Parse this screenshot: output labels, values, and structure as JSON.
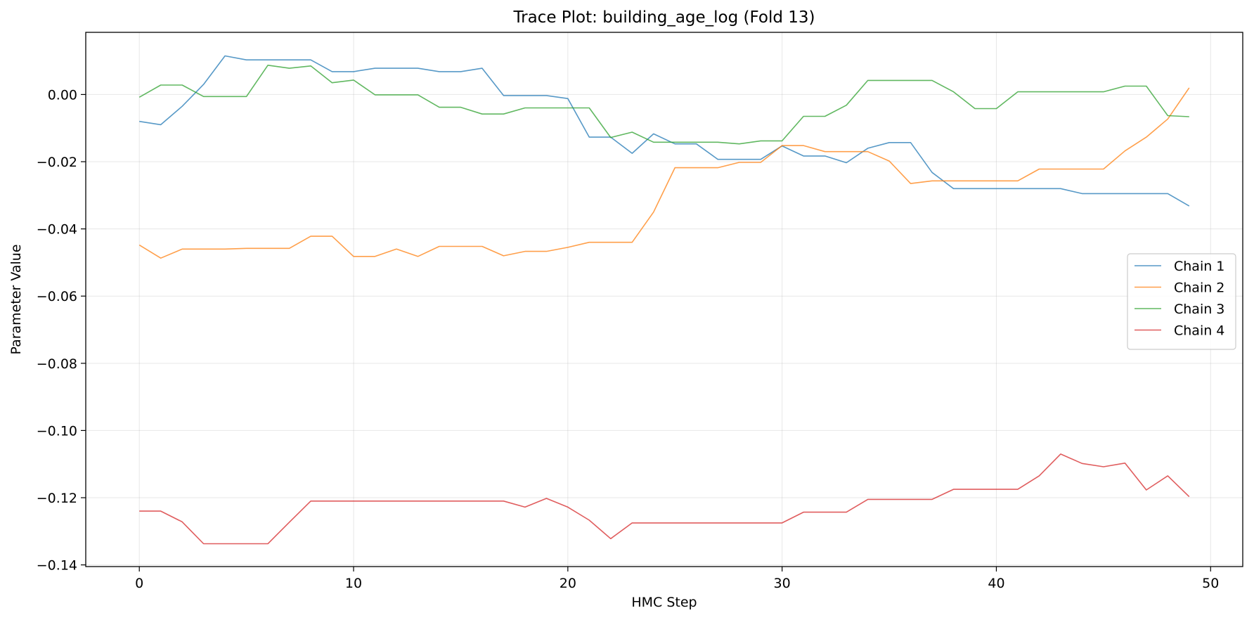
{
  "chart_data": {
    "type": "line",
    "title": "Trace Plot: building_age_log (Fold 13)",
    "xlabel": "HMC Step",
    "ylabel": "Parameter Value",
    "xlim": [
      -2.5,
      51.5
    ],
    "ylim": [
      -0.1405,
      0.0185
    ],
    "xticks": [
      0,
      10,
      20,
      30,
      40,
      50
    ],
    "xtick_labels": [
      "0",
      "10",
      "20",
      "30",
      "40",
      "50"
    ],
    "yticks": [
      0.0,
      -0.02,
      -0.04,
      -0.06,
      -0.08,
      -0.1,
      -0.12,
      -0.14
    ],
    "ytick_labels": [
      "0.00",
      "−0.02",
      "−0.04",
      "−0.06",
      "−0.08",
      "−0.10",
      "−0.12",
      "−0.14"
    ],
    "grid": true,
    "legend_position": "center-right",
    "x": [
      0,
      1,
      2,
      3,
      4,
      5,
      6,
      7,
      8,
      9,
      10,
      11,
      12,
      13,
      14,
      15,
      16,
      17,
      18,
      19,
      20,
      21,
      22,
      23,
      24,
      25,
      26,
      27,
      28,
      29,
      30,
      31,
      32,
      33,
      34,
      35,
      36,
      37,
      38,
      39,
      40,
      41,
      42,
      43,
      44,
      45,
      46,
      47,
      48,
      49
    ],
    "series": [
      {
        "name": "Chain 1",
        "color": "#1f77b4",
        "values": [
          -0.008,
          -0.009,
          -0.0035,
          0.003,
          0.0115,
          0.0103,
          0.0103,
          0.0103,
          0.0103,
          0.0068,
          0.0068,
          0.0078,
          0.0078,
          0.0078,
          0.0068,
          0.0068,
          0.0078,
          -0.0003,
          -0.0003,
          -0.0003,
          -0.0012,
          -0.0127,
          -0.0127,
          -0.0175,
          -0.0117,
          -0.0147,
          -0.0147,
          -0.0193,
          -0.0193,
          -0.0193,
          -0.0153,
          -0.0183,
          -0.0183,
          -0.0203,
          -0.016,
          -0.0143,
          -0.0143,
          -0.0232,
          -0.028,
          -0.028,
          -0.028,
          -0.028,
          -0.028,
          -0.028,
          -0.0295,
          -0.0295,
          -0.0295,
          -0.0295,
          -0.0295,
          -0.0332
        ]
      },
      {
        "name": "Chain 2",
        "color": "#ff7f0e",
        "values": [
          -0.0448,
          -0.0487,
          -0.046,
          -0.046,
          -0.046,
          -0.0458,
          -0.0458,
          -0.0458,
          -0.0422,
          -0.0422,
          -0.0482,
          -0.0482,
          -0.046,
          -0.0482,
          -0.0452,
          -0.0452,
          -0.0452,
          -0.048,
          -0.0467,
          -0.0467,
          -0.0455,
          -0.044,
          -0.044,
          -0.044,
          -0.035,
          -0.0218,
          -0.0218,
          -0.0218,
          -0.0202,
          -0.0202,
          -0.0152,
          -0.0152,
          -0.017,
          -0.017,
          -0.017,
          -0.0198,
          -0.0265,
          -0.0257,
          -0.0257,
          -0.0257,
          -0.0257,
          -0.0257,
          -0.0222,
          -0.0222,
          -0.0222,
          -0.0222,
          -0.0168,
          -0.0127,
          -0.0073,
          0.002
        ]
      },
      {
        "name": "Chain 3",
        "color": "#2ca02c",
        "values": [
          -0.0008,
          0.0028,
          0.0028,
          -0.0006,
          -0.0006,
          -0.0006,
          0.0087,
          0.0078,
          0.0085,
          0.0035,
          0.0043,
          -0.0001,
          -0.0001,
          -0.0001,
          -0.0038,
          -0.0038,
          -0.0058,
          -0.0058,
          -0.004,
          -0.004,
          -0.004,
          -0.004,
          -0.0128,
          -0.0112,
          -0.0142,
          -0.0142,
          -0.0142,
          -0.0142,
          -0.0147,
          -0.0138,
          -0.0138,
          -0.0065,
          -0.0065,
          -0.0032,
          0.0042,
          0.0042,
          0.0042,
          0.0042,
          0.0008,
          -0.0042,
          -0.0042,
          0.0008,
          0.0008,
          0.0008,
          0.0008,
          0.0008,
          0.0025,
          0.0025,
          -0.0063,
          -0.0066
        ]
      },
      {
        "name": "Chain 4",
        "color": "#d62728",
        "values": [
          -0.124,
          -0.124,
          -0.1272,
          -0.1337,
          -0.1337,
          -0.1337,
          -0.1337,
          -0.1273,
          -0.121,
          -0.121,
          -0.121,
          -0.121,
          -0.121,
          -0.121,
          -0.121,
          -0.121,
          -0.121,
          -0.121,
          -0.1228,
          -0.1202,
          -0.1228,
          -0.1267,
          -0.1322,
          -0.1275,
          -0.1275,
          -0.1275,
          -0.1275,
          -0.1275,
          -0.1275,
          -0.1275,
          -0.1275,
          -0.1243,
          -0.1243,
          -0.1243,
          -0.1205,
          -0.1205,
          -0.1205,
          -0.1205,
          -0.1175,
          -0.1175,
          -0.1175,
          -0.1175,
          -0.1135,
          -0.107,
          -0.1098,
          -0.1108,
          -0.1097,
          -0.1177,
          -0.1135,
          -0.1197
        ]
      }
    ]
  }
}
